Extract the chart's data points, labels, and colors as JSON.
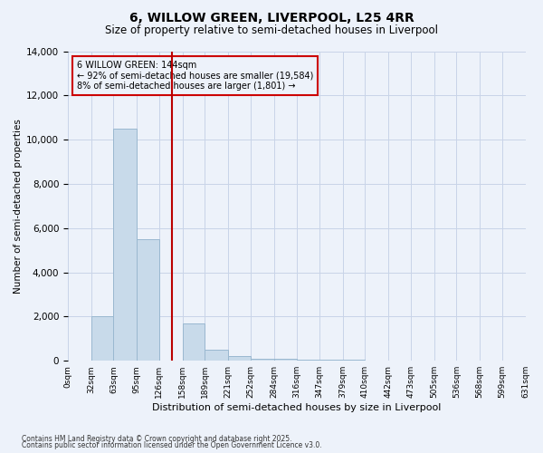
{
  "title": "6, WILLOW GREEN, LIVERPOOL, L25 4RR",
  "subtitle": "Size of property relative to semi-detached houses in Liverpool",
  "xlabel": "Distribution of semi-detached houses by size in Liverpool",
  "ylabel": "Number of semi-detached properties",
  "footer_line1": "Contains HM Land Registry data © Crown copyright and database right 2025.",
  "footer_line2": "Contains public sector information licensed under the Open Government Licence v3.0.",
  "annotation_title": "6 WILLOW GREEN: 144sqm",
  "annotation_line1": "← 92% of semi-detached houses are smaller (19,584)",
  "annotation_line2": "8% of semi-detached houses are larger (1,801) →",
  "property_size_sqm": 144,
  "bar_left_edges": [
    0,
    32,
    63,
    95,
    126,
    158,
    189,
    221,
    252,
    284,
    316,
    347,
    379,
    410,
    442,
    473,
    505,
    536,
    568,
    599,
    631
  ],
  "bar_heights": [
    0,
    2000,
    10500,
    5500,
    0,
    1700,
    500,
    200,
    100,
    80,
    60,
    40,
    30,
    20,
    10,
    5,
    5,
    3,
    2,
    1,
    0
  ],
  "bar_color": "#c8daea",
  "bar_edge_color": "#9ab8d0",
  "vline_color": "#bb0000",
  "vline_x": 144,
  "grid_color": "#c8d4e8",
  "background_color": "#edf2fa",
  "annotation_box_color": "#cc0000",
  "ylim": [
    0,
    14000
  ],
  "yticks": [
    0,
    2000,
    4000,
    6000,
    8000,
    10000,
    12000,
    14000
  ],
  "tick_labels": [
    "0sqm",
    "32sqm",
    "63sqm",
    "95sqm",
    "126sqm",
    "158sqm",
    "189sqm",
    "221sqm",
    "252sqm",
    "284sqm",
    "316sqm",
    "347sqm",
    "379sqm",
    "410sqm",
    "442sqm",
    "473sqm",
    "505sqm",
    "536sqm",
    "568sqm",
    "599sqm",
    "631sqm"
  ]
}
